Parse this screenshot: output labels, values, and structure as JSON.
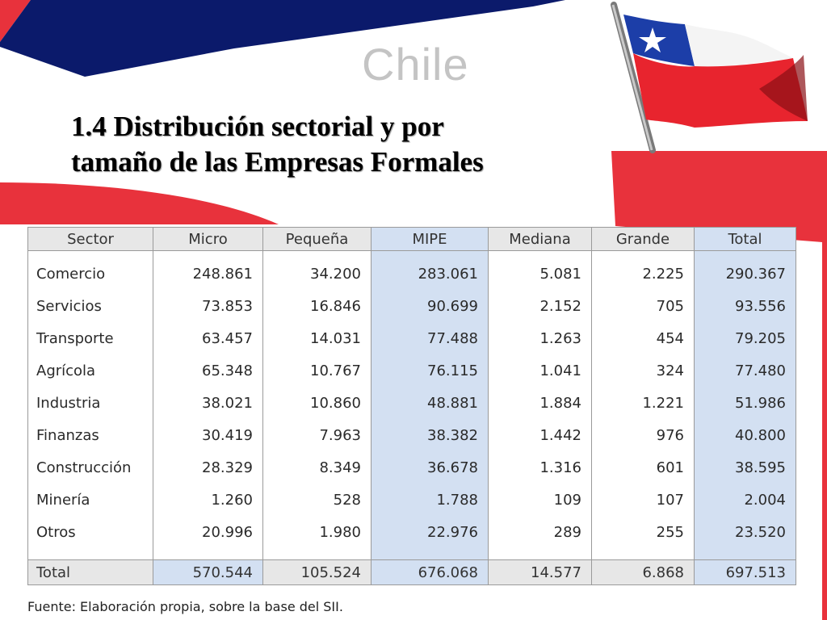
{
  "logo": "Chile",
  "title_line1": "1.4  Distribución sectorial y por",
  "title_line2": "tamaño de las Empresas Formales",
  "table": {
    "headers": [
      "Sector",
      "Micro",
      "Pequeña",
      "MIPE",
      "Mediana",
      "Grande",
      "Total"
    ],
    "rows": [
      [
        "Comercio",
        "248.861",
        "34.200",
        "283.061",
        "5.081",
        "2.225",
        "290.367"
      ],
      [
        "Servicios",
        "73.853",
        "16.846",
        "90.699",
        "2.152",
        "705",
        "93.556"
      ],
      [
        "Transporte",
        "63.457",
        "14.031",
        "77.488",
        "1.263",
        "454",
        "79.205"
      ],
      [
        "Agrícola",
        "65.348",
        "10.767",
        "76.115",
        "1.041",
        "324",
        "77.480"
      ],
      [
        "Industria",
        "38.021",
        "10.860",
        "48.881",
        "1.884",
        "1.221",
        "51.986"
      ],
      [
        "Finanzas",
        "30.419",
        "7.963",
        "38.382",
        "1.442",
        "976",
        "40.800"
      ],
      [
        "Construcción",
        "28.329",
        "8.349",
        "36.678",
        "1.316",
        "601",
        "38.595"
      ],
      [
        "Minería",
        "1.260",
        "528",
        "1.788",
        "109",
        "107",
        "2.004"
      ],
      [
        "Otros",
        "20.996",
        "1.980",
        "22.976",
        "289",
        "255",
        "23.520"
      ]
    ],
    "total": [
      "Total",
      "570.544",
      "105.524",
      "676.068",
      "14.577",
      "6.868",
      "697.513"
    ]
  },
  "source": "Fuente: Elaboración propia, sobre la base del SII.",
  "colors": {
    "navy": "#0b1a6b",
    "red": "#e8323c",
    "header_gray": "#e7e7e7",
    "header_blue": "#d3e0f2"
  }
}
